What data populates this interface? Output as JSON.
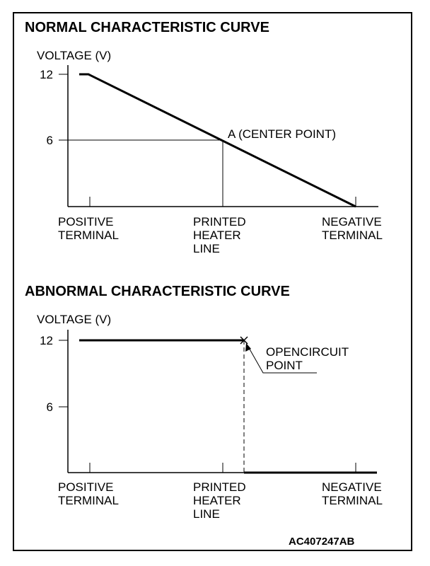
{
  "normal": {
    "title": "NORMAL CHARACTERISTIC CURVE",
    "y_axis_label": "VOLTAGE (V)",
    "y_ticks": [
      "12",
      "6"
    ],
    "x_labels": [
      [
        "POSITIVE",
        "TERMINAL"
      ],
      [
        "PRINTED",
        "HEATER",
        "LINE"
      ],
      [
        "NEGATIVE",
        "TERMINAL"
      ]
    ],
    "annotation": "A (CENTER POINT)"
  },
  "abnormal": {
    "title": "ABNORMAL CHARACTERISTIC CURVE",
    "y_axis_label": "VOLTAGE (V)",
    "y_ticks": [
      "12",
      "6"
    ],
    "x_labels": [
      [
        "POSITIVE",
        "TERMINAL"
      ],
      [
        "PRINTED",
        "HEATER",
        "LINE"
      ],
      [
        "NEGATIVE",
        "TERMINAL"
      ]
    ],
    "annotation": [
      "OPENCIRCUIT",
      "POINT"
    ]
  },
  "figure_code": "AC407247AB"
}
